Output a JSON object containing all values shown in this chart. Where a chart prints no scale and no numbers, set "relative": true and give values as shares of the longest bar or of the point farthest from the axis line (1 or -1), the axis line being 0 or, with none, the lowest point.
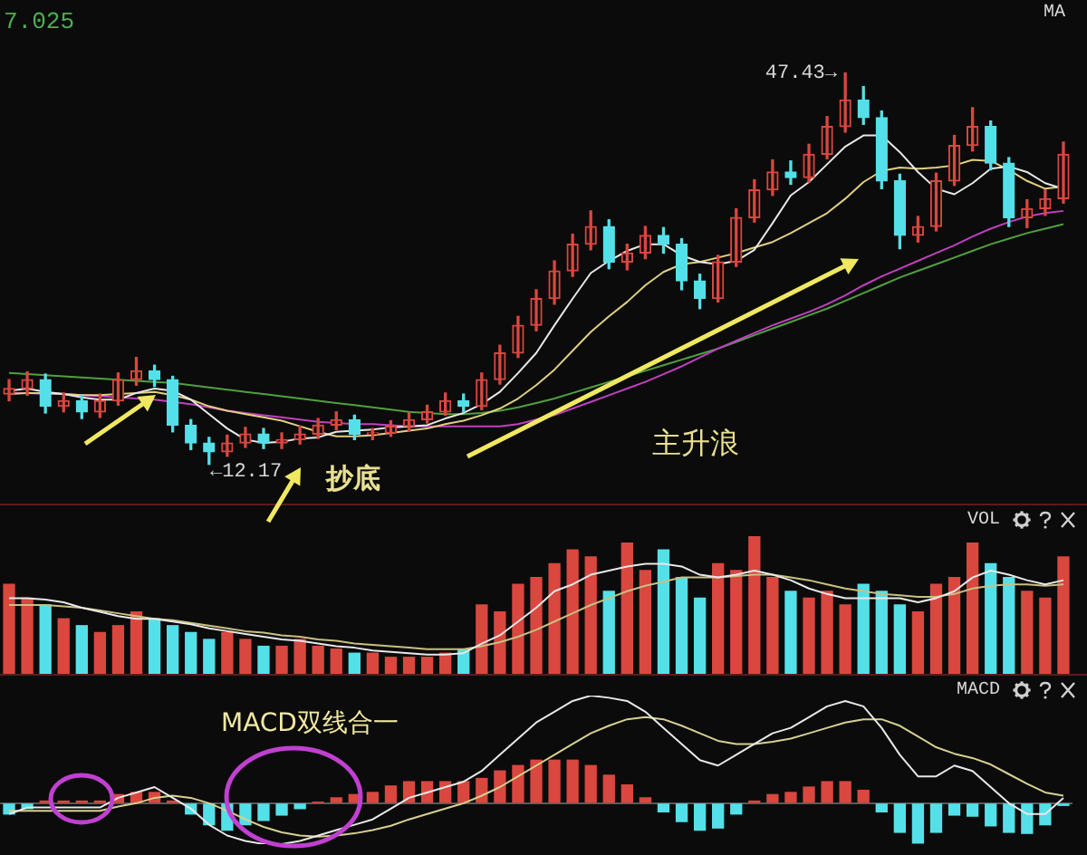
{
  "chart_data": [
    {
      "type": "candlestick",
      "title": "MA",
      "tick_labels": false,
      "marker": "none",
      "ylim": [
        8.8,
        54.0
      ],
      "categories": [
        null,
        null,
        null,
        null,
        null,
        null,
        null,
        null,
        null,
        null,
        null,
        null,
        null,
        null,
        null,
        null,
        null,
        null,
        null,
        null,
        null,
        null,
        null,
        null,
        null,
        null,
        null,
        null,
        null,
        null,
        null,
        null,
        null,
        null,
        null,
        null,
        null,
        null,
        null,
        null,
        null,
        null,
        null,
        null,
        null,
        null,
        null,
        null,
        null,
        null,
        null,
        null,
        null,
        null,
        null,
        null,
        null,
        null,
        null
      ],
      "ohlc": [
        [
          18.5,
          19.8,
          17.9,
          19.0
        ],
        [
          19.0,
          20.5,
          18.4,
          19.8
        ],
        [
          19.8,
          20.3,
          16.8,
          17.4
        ],
        [
          17.4,
          18.6,
          16.9,
          17.9
        ],
        [
          17.9,
          18.4,
          16.3,
          16.9
        ],
        [
          16.9,
          18.5,
          16.4,
          17.9
        ],
        [
          17.9,
          20.4,
          17.5,
          19.8
        ],
        [
          19.8,
          21.8,
          19.3,
          20.6
        ],
        [
          20.6,
          21.1,
          19.2,
          19.8
        ],
        [
          19.8,
          20.1,
          15.1,
          15.7
        ],
        [
          15.7,
          16.2,
          13.5,
          14.1
        ],
        [
          14.1,
          14.6,
          12.17,
          13.3
        ],
        [
          13.3,
          14.8,
          12.9,
          14.1
        ],
        [
          14.1,
          15.5,
          13.7,
          14.9
        ],
        [
          14.9,
          15.4,
          13.6,
          14.1
        ],
        [
          14.1,
          15.0,
          13.6,
          14.4
        ],
        [
          14.4,
          15.6,
          14.0,
          14.9
        ],
        [
          14.9,
          16.3,
          14.5,
          15.7
        ],
        [
          15.7,
          16.9,
          15.3,
          16.2
        ],
        [
          16.2,
          16.6,
          14.4,
          14.9
        ],
        [
          14.9,
          15.4,
          14.4,
          15.0
        ],
        [
          15.0,
          16.1,
          14.7,
          15.6
        ],
        [
          15.6,
          16.8,
          15.2,
          16.2
        ],
        [
          16.2,
          17.5,
          15.9,
          16.9
        ],
        [
          16.9,
          18.6,
          16.6,
          17.9
        ],
        [
          17.9,
          18.5,
          16.9,
          17.4
        ],
        [
          17.4,
          20.4,
          17.1,
          19.8
        ],
        [
          19.8,
          22.9,
          19.4,
          22.2
        ],
        [
          22.2,
          25.5,
          21.8,
          24.7
        ],
        [
          24.7,
          27.9,
          24.2,
          27.1
        ],
        [
          27.1,
          30.5,
          26.6,
          29.6
        ],
        [
          29.6,
          32.9,
          29.1,
          32.0
        ],
        [
          32.0,
          35.0,
          31.5,
          33.6
        ],
        [
          33.6,
          34.2,
          29.8,
          30.4
        ],
        [
          30.4,
          32.0,
          29.7,
          31.2
        ],
        [
          31.2,
          33.6,
          30.7,
          32.8
        ],
        [
          32.8,
          33.5,
          31.2,
          32.0
        ],
        [
          32.0,
          32.5,
          27.9,
          28.7
        ],
        [
          28.7,
          29.3,
          26.2,
          27.1
        ],
        [
          27.1,
          31.0,
          26.8,
          30.4
        ],
        [
          30.4,
          35.2,
          30.0,
          34.4
        ],
        [
          34.4,
          37.8,
          34.0,
          36.9
        ],
        [
          36.9,
          39.6,
          36.4,
          38.5
        ],
        [
          38.5,
          39.5,
          37.4,
          38.0
        ],
        [
          38.0,
          41.0,
          37.6,
          40.1
        ],
        [
          40.1,
          43.5,
          39.7,
          42.6
        ],
        [
          42.6,
          47.43,
          42.1,
          45.0
        ],
        [
          45.0,
          46.2,
          42.8,
          43.4
        ],
        [
          43.4,
          44.0,
          37.0,
          37.7
        ],
        [
          37.7,
          38.3,
          31.6,
          32.8
        ],
        [
          32.8,
          34.5,
          32.2,
          33.6
        ],
        [
          33.6,
          38.4,
          33.2,
          37.7
        ],
        [
          37.7,
          41.8,
          37.3,
          40.9
        ],
        [
          40.9,
          44.3,
          40.4,
          42.6
        ],
        [
          42.6,
          43.1,
          38.7,
          39.3
        ],
        [
          39.3,
          39.8,
          33.6,
          34.4
        ],
        [
          34.4,
          36.0,
          33.5,
          35.2
        ],
        [
          35.2,
          36.9,
          34.6,
          36.1
        ],
        [
          36.1,
          41.2,
          35.7,
          40.1
        ]
      ],
      "colors": [
        "#d9473f",
        "#d9473f",
        "#54e0e8",
        "#d9473f",
        "#54e0e8",
        "#d9473f",
        "#d9473f",
        "#d9473f",
        "#54e0e8",
        "#54e0e8",
        "#54e0e8",
        "#54e0e8",
        "#d9473f",
        "#d9473f",
        "#54e0e8",
        "#d9473f",
        "#d9473f",
        "#d9473f",
        "#d9473f",
        "#54e0e8",
        "#d9473f",
        "#d9473f",
        "#d9473f",
        "#d9473f",
        "#d9473f",
        "#54e0e8",
        "#d9473f",
        "#d9473f",
        "#d9473f",
        "#d9473f",
        "#d9473f",
        "#d9473f",
        "#d9473f",
        "#54e0e8",
        "#d9473f",
        "#d9473f",
        "#54e0e8",
        "#54e0e8",
        "#54e0e8",
        "#d9473f",
        "#d9473f",
        "#d9473f",
        "#d9473f",
        "#54e0e8",
        "#d9473f",
        "#d9473f",
        "#d9473f",
        "#54e0e8",
        "#54e0e8",
        "#54e0e8",
        "#d9473f",
        "#d9473f",
        "#d9473f",
        "#d9473f",
        "#54e0e8",
        "#54e0e8",
        "#d9473f",
        "#d9473f",
        "#d9473f"
      ],
      "series": [
        {
          "type": "line",
          "color": "#e8e8e8",
          "values": [
            18.8,
            19.0,
            18.7,
            18.5,
            18.2,
            18.0,
            18.0,
            18.6,
            19.0,
            18.8,
            18.0,
            16.7,
            15.4,
            14.4,
            14.1,
            14.2,
            14.5,
            14.6,
            15.1,
            15.2,
            15.3,
            15.5,
            15.6,
            15.7,
            16.3,
            16.8,
            17.6,
            18.7,
            20.4,
            22.2,
            24.7,
            27.1,
            29.4,
            30.5,
            31.4,
            32.0,
            32.0,
            31.0,
            30.4,
            30.2,
            30.5,
            31.5,
            33.9,
            36.4,
            37.6,
            39.2,
            40.8,
            41.8,
            41.8,
            40.3,
            38.5,
            37.0,
            36.5,
            37.5,
            38.8,
            39.0,
            38.5,
            37.5,
            37.0
          ]
        },
        {
          "type": "line",
          "color": "#e0d080",
          "values": [
            18.5,
            18.6,
            18.6,
            18.5,
            18.4,
            18.4,
            18.5,
            18.6,
            18.7,
            18.4,
            18.0,
            17.4,
            17.0,
            16.7,
            16.4,
            16.1,
            15.6,
            15.1,
            14.7,
            14.7,
            14.8,
            15.0,
            15.2,
            15.4,
            15.8,
            16.1,
            16.6,
            17.2,
            18.1,
            19.3,
            20.7,
            22.4,
            24.1,
            25.5,
            26.8,
            28.3,
            29.5,
            30.2,
            30.4,
            30.8,
            31.2,
            31.7,
            32.2,
            33.0,
            33.9,
            34.8,
            36.1,
            37.6,
            38.6,
            38.9,
            38.8,
            38.9,
            39.1,
            39.6,
            39.5,
            38.7,
            37.7,
            37.0,
            37.2
          ]
        },
        {
          "type": "line",
          "color": "#c040c0",
          "values": [
            18.6,
            18.6,
            18.5,
            18.5,
            18.4,
            18.3,
            18.2,
            18.1,
            18.0,
            17.8,
            17.6,
            17.3,
            17.0,
            16.8,
            16.6,
            16.4,
            16.2,
            16.0,
            15.9,
            15.8,
            15.8,
            15.7,
            15.6,
            15.6,
            15.6,
            15.6,
            15.6,
            15.6,
            15.8,
            16.2,
            16.6,
            17.2,
            17.8,
            18.4,
            19.0,
            19.6,
            20.3,
            21.0,
            21.8,
            22.6,
            23.3,
            24.0,
            24.7,
            25.3,
            25.9,
            26.6,
            27.4,
            28.3,
            29.1,
            29.8,
            30.5,
            31.2,
            31.9,
            32.7,
            33.4,
            34.0,
            34.5,
            34.8,
            35.0
          ]
        },
        {
          "type": "line",
          "color": "#50a040",
          "values": [
            20.4,
            20.3,
            20.2,
            20.1,
            20.0,
            19.9,
            19.8,
            19.7,
            19.6,
            19.5,
            19.3,
            19.1,
            18.9,
            18.7,
            18.5,
            18.3,
            18.1,
            17.9,
            17.7,
            17.5,
            17.3,
            17.1,
            16.9,
            16.8,
            16.7,
            16.7,
            16.8,
            17.0,
            17.3,
            17.7,
            18.1,
            18.6,
            19.1,
            19.6,
            20.1,
            20.6,
            21.1,
            21.6,
            22.1,
            22.6,
            23.2,
            23.8,
            24.4,
            25.0,
            25.6,
            26.2,
            26.9,
            27.6,
            28.3,
            29.0,
            29.6,
            30.2,
            30.8,
            31.4,
            32.0,
            32.5,
            33.0,
            33.4,
            33.8
          ]
        }
      ],
      "annotations": [
        "7.025",
        "47.43→",
        "←12.17",
        "抄底",
        "主升浪"
      ]
    },
    {
      "type": "bar",
      "title": "VOL",
      "relative": true,
      "tick_labels": false,
      "marker": "none",
      "categories": [
        null,
        null,
        null,
        null,
        null,
        null,
        null,
        null,
        null,
        null,
        null,
        null,
        null,
        null,
        null,
        null,
        null,
        null,
        null,
        null,
        null,
        null,
        null,
        null,
        null,
        null,
        null,
        null,
        null,
        null,
        null,
        null,
        null,
        null,
        null,
        null,
        null,
        null,
        null,
        null,
        null,
        null,
        null,
        null,
        null,
        null,
        null,
        null,
        null,
        null,
        null,
        null,
        null,
        null,
        null,
        null,
        null,
        null,
        null
      ],
      "series": [
        {
          "type": "bar",
          "values": [
            0.65,
            0.55,
            0.5,
            0.4,
            0.35,
            0.3,
            0.35,
            0.45,
            0.4,
            0.35,
            0.3,
            0.25,
            0.3,
            0.25,
            0.2,
            0.2,
            0.25,
            0.2,
            0.18,
            0.15,
            0.15,
            0.12,
            0.12,
            0.12,
            0.15,
            0.18,
            0.5,
            0.45,
            0.65,
            0.7,
            0.8,
            0.9,
            0.85,
            0.6,
            0.95,
            0.75,
            0.9,
            0.7,
            0.55,
            0.8,
            0.75,
            1.0,
            0.7,
            0.6,
            0.55,
            0.6,
            0.5,
            0.65,
            0.6,
            0.5,
            0.45,
            0.65,
            0.7,
            0.95,
            0.8,
            0.7,
            0.6,
            0.55,
            0.85
          ],
          "colors": [
            "#d9473f",
            "#d9473f",
            "#54e0e8",
            "#d9473f",
            "#54e0e8",
            "#d9473f",
            "#d9473f",
            "#d9473f",
            "#54e0e8",
            "#54e0e8",
            "#54e0e8",
            "#54e0e8",
            "#d9473f",
            "#d9473f",
            "#54e0e8",
            "#d9473f",
            "#d9473f",
            "#d9473f",
            "#d9473f",
            "#54e0e8",
            "#d9473f",
            "#d9473f",
            "#d9473f",
            "#d9473f",
            "#d9473f",
            "#54e0e8",
            "#d9473f",
            "#d9473f",
            "#d9473f",
            "#d9473f",
            "#d9473f",
            "#d9473f",
            "#d9473f",
            "#54e0e8",
            "#d9473f",
            "#d9473f",
            "#54e0e8",
            "#54e0e8",
            "#54e0e8",
            "#d9473f",
            "#d9473f",
            "#d9473f",
            "#d9473f",
            "#54e0e8",
            "#d9473f",
            "#d9473f",
            "#d9473f",
            "#54e0e8",
            "#54e0e8",
            "#54e0e8",
            "#d9473f",
            "#d9473f",
            "#d9473f",
            "#d9473f",
            "#54e0e8",
            "#54e0e8",
            "#d9473f",
            "#d9473f",
            "#d9473f"
          ]
        },
        {
          "type": "line",
          "color": "#e8e8e8",
          "values": [
            0.55,
            0.55,
            0.54,
            0.52,
            0.48,
            0.45,
            0.42,
            0.4,
            0.4,
            0.38,
            0.36,
            0.33,
            0.31,
            0.29,
            0.27,
            0.25,
            0.24,
            0.22,
            0.2,
            0.19,
            0.17,
            0.16,
            0.15,
            0.14,
            0.14,
            0.15,
            0.22,
            0.28,
            0.38,
            0.48,
            0.6,
            0.65,
            0.72,
            0.75,
            0.78,
            0.8,
            0.8,
            0.78,
            0.72,
            0.7,
            0.72,
            0.75,
            0.72,
            0.68,
            0.62,
            0.58,
            0.55,
            0.55,
            0.55,
            0.55,
            0.52,
            0.55,
            0.6,
            0.7,
            0.75,
            0.72,
            0.68,
            0.65,
            0.68
          ]
        },
        {
          "type": "line",
          "color": "#c8c080",
          "values": [
            0.5,
            0.5,
            0.5,
            0.49,
            0.48,
            0.46,
            0.44,
            0.42,
            0.4,
            0.39,
            0.37,
            0.35,
            0.33,
            0.31,
            0.3,
            0.28,
            0.27,
            0.25,
            0.24,
            0.22,
            0.21,
            0.2,
            0.19,
            0.18,
            0.18,
            0.18,
            0.2,
            0.23,
            0.27,
            0.32,
            0.38,
            0.44,
            0.5,
            0.55,
            0.6,
            0.64,
            0.67,
            0.7,
            0.7,
            0.7,
            0.71,
            0.72,
            0.72,
            0.7,
            0.68,
            0.65,
            0.62,
            0.6,
            0.58,
            0.57,
            0.56,
            0.56,
            0.58,
            0.62,
            0.64,
            0.65,
            0.65,
            0.64,
            0.65
          ]
        }
      ]
    },
    {
      "type": "bar",
      "title": "MACD",
      "relative": true,
      "tick_labels": false,
      "marker": "none",
      "categories": [
        null,
        null,
        null,
        null,
        null,
        null,
        null,
        null,
        null,
        null,
        null,
        null,
        null,
        null,
        null,
        null,
        null,
        null,
        null,
        null,
        null,
        null,
        null,
        null,
        null,
        null,
        null,
        null,
        null,
        null,
        null,
        null,
        null,
        null,
        null,
        null,
        null,
        null,
        null,
        null,
        null,
        null,
        null,
        null,
        null,
        null,
        null,
        null,
        null,
        null,
        null,
        null,
        null,
        null,
        null,
        null,
        null,
        null,
        null
      ],
      "series": [
        {
          "type": "bar",
          "values": [
            -0.1,
            -0.05,
            0.02,
            0.02,
            0.02,
            0.02,
            0.08,
            0.1,
            0.1,
            0.02,
            -0.1,
            -0.2,
            -0.25,
            -0.2,
            -0.16,
            -0.11,
            -0.05,
            0.01,
            0.05,
            0.08,
            0.1,
            0.16,
            0.2,
            0.2,
            0.2,
            0.2,
            0.23,
            0.3,
            0.35,
            0.4,
            0.4,
            0.4,
            0.35,
            0.26,
            0.17,
            0.05,
            -0.08,
            -0.17,
            -0.25,
            -0.23,
            -0.1,
            0.02,
            0.08,
            0.1,
            0.15,
            0.2,
            0.2,
            0.12,
            -0.08,
            -0.27,
            -0.37,
            -0.27,
            -0.11,
            -0.12,
            -0.21,
            -0.27,
            -0.28,
            -0.2,
            -0.02
          ],
          "colors": [
            "#54e0e8",
            "#54e0e8",
            "#d9473f",
            "#d9473f",
            "#d9473f",
            "#d9473f",
            "#d9473f",
            "#d9473f",
            "#d9473f",
            "#d9473f",
            "#54e0e8",
            "#54e0e8",
            "#54e0e8",
            "#54e0e8",
            "#54e0e8",
            "#54e0e8",
            "#54e0e8",
            "#d9473f",
            "#d9473f",
            "#d9473f",
            "#d9473f",
            "#d9473f",
            "#d9473f",
            "#d9473f",
            "#d9473f",
            "#d9473f",
            "#d9473f",
            "#d9473f",
            "#d9473f",
            "#d9473f",
            "#d9473f",
            "#d9473f",
            "#d9473f",
            "#d9473f",
            "#d9473f",
            "#d9473f",
            "#54e0e8",
            "#54e0e8",
            "#54e0e8",
            "#54e0e8",
            "#54e0e8",
            "#d9473f",
            "#d9473f",
            "#d9473f",
            "#d9473f",
            "#d9473f",
            "#d9473f",
            "#d9473f",
            "#54e0e8",
            "#54e0e8",
            "#54e0e8",
            "#54e0e8",
            "#54e0e8",
            "#54e0e8",
            "#54e0e8",
            "#54e0e8",
            "#54e0e8",
            "#54e0e8",
            "#54e0e8"
          ]
        },
        {
          "type": "line",
          "color": "#e8e8e8",
          "values": [
            -0.1,
            -0.04,
            -0.04,
            -0.04,
            -0.04,
            -0.04,
            0.05,
            0.1,
            0.15,
            0.05,
            -0.05,
            -0.2,
            -0.3,
            -0.35,
            -0.38,
            -0.38,
            -0.35,
            -0.3,
            -0.25,
            -0.2,
            -0.15,
            -0.05,
            0.05,
            0.1,
            0.15,
            0.2,
            0.3,
            0.45,
            0.6,
            0.75,
            0.85,
            0.95,
            1.0,
            0.98,
            0.95,
            0.85,
            0.7,
            0.55,
            0.4,
            0.35,
            0.45,
            0.55,
            0.65,
            0.7,
            0.8,
            0.9,
            0.95,
            0.9,
            0.7,
            0.45,
            0.25,
            0.25,
            0.35,
            0.3,
            0.15,
            0.0,
            -0.1,
            -0.1,
            0.05
          ]
        },
        {
          "type": "line",
          "color": "#d8d090",
          "values": [
            -0.07,
            -0.07,
            -0.07,
            -0.07,
            -0.07,
            -0.07,
            -0.03,
            0.0,
            0.05,
            0.07,
            0.05,
            0.0,
            -0.07,
            -0.15,
            -0.22,
            -0.27,
            -0.3,
            -0.31,
            -0.3,
            -0.28,
            -0.25,
            -0.21,
            -0.15,
            -0.1,
            -0.05,
            0.0,
            0.07,
            0.15,
            0.25,
            0.35,
            0.45,
            0.55,
            0.65,
            0.72,
            0.78,
            0.8,
            0.78,
            0.72,
            0.65,
            0.58,
            0.55,
            0.55,
            0.57,
            0.6,
            0.65,
            0.7,
            0.75,
            0.78,
            0.78,
            0.72,
            0.62,
            0.52,
            0.46,
            0.42,
            0.36,
            0.27,
            0.18,
            0.1,
            0.07
          ]
        }
      ],
      "annotations": [
        "MACD双线合一"
      ]
    }
  ]
}
